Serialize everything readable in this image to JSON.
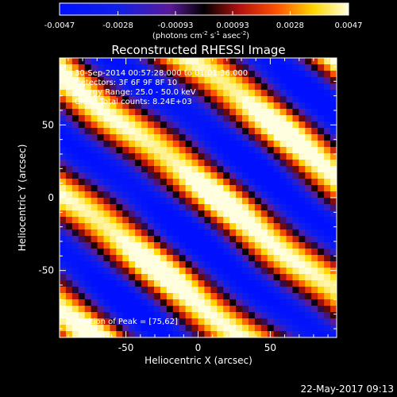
{
  "chart_data": {
    "type": "heatmap",
    "title": "Reconstructed RHESSI Image",
    "xlabel": "Heliocentric X (arcsec)",
    "ylabel": "Heliocentric Y (arcsec)",
    "xlim": [
      -96,
      96
    ],
    "ylim": [
      -96,
      96
    ],
    "x_ticks": [
      -50,
      0,
      50
    ],
    "y_ticks": [
      50,
      0,
      -50
    ],
    "colorbar": {
      "ticks": [
        "-0.0047",
        "-0.0028",
        "-0.00093",
        "0.00093",
        "0.0028",
        "0.0047"
      ],
      "min": -0.0047,
      "max": 0.0047,
      "unit_base": "(photons cm",
      "unit_exp1": "-2",
      "unit_mid": " s",
      "unit_exp2": "-1",
      "unit_mid2": " asec",
      "unit_exp3": "-2",
      "unit_end": ")"
    },
    "annotations": [
      "30-Sep-2014 00:57:28.000 to 01:01:36.000",
      "Detectors: 3F 6F 9F 8F 10",
      "Energy Range: 25.0 - 50.0 keV",
      "Clean     Total counts: 8.24E+03"
    ],
    "peak_label": "Position of Peak = [75,62]",
    "pattern": {
      "description_free": true,
      "stripe_direction_deg": -38,
      "stripe_period": 64,
      "amplitude": 0.0047
    }
  },
  "footer": {
    "date": "22-May-2017 09:13"
  }
}
